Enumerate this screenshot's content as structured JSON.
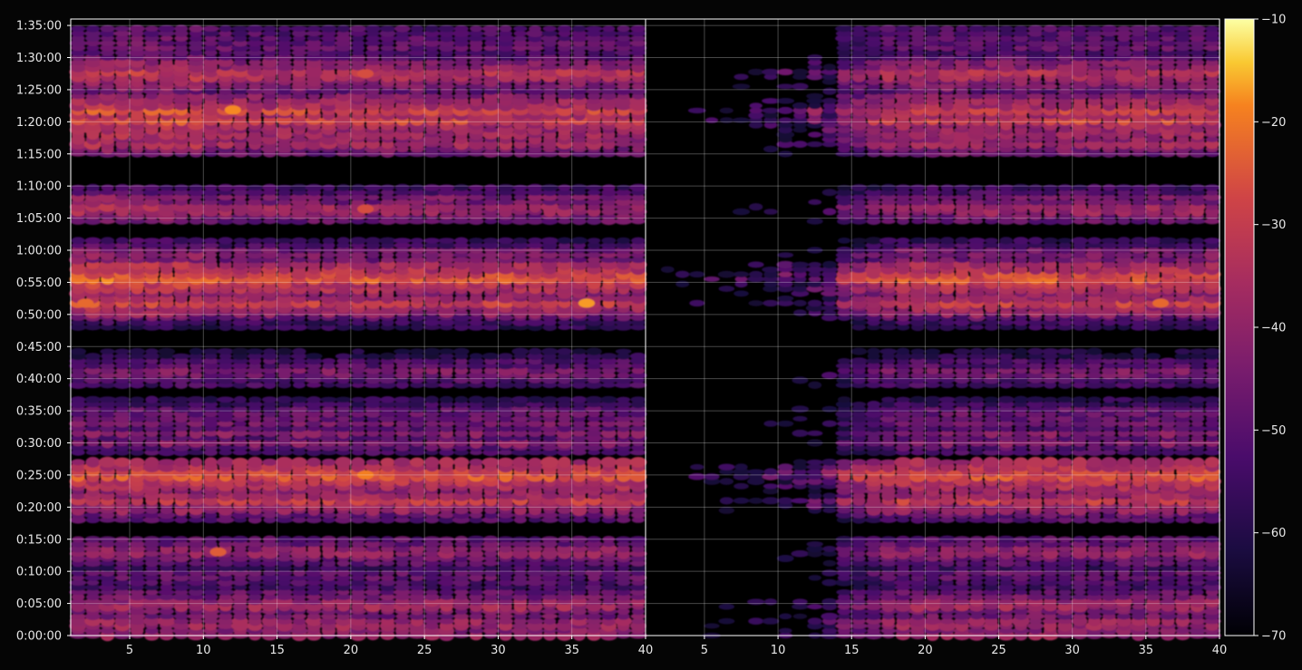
{
  "chart_data": {
    "type": "heatmap",
    "title": "",
    "xlabel": "",
    "ylabel": "",
    "panels": [
      {
        "name": "",
        "x_range": [
          1,
          40
        ],
        "x_ticks": [
          5,
          10,
          15,
          20,
          25,
          30,
          35,
          40
        ],
        "x_tick_labels": [
          "5",
          "10",
          "15",
          "20",
          "25",
          "30",
          "35",
          "40"
        ]
      },
      {
        "name": "",
        "x_range": [
          1,
          40
        ],
        "x_ticks": [
          5,
          10,
          15,
          20,
          25,
          30,
          35,
          40
        ],
        "x_tick_labels": [
          "5",
          "10",
          "15",
          "20",
          "25",
          "30",
          "35",
          "40"
        ]
      }
    ],
    "y_range_seconds": [
      0,
      5760
    ],
    "y_ticks_seconds": [
      0,
      300,
      600,
      900,
      1200,
      1500,
      1800,
      2100,
      2400,
      2700,
      3000,
      3300,
      3600,
      3900,
      4200,
      4500,
      4800,
      5100,
      5400,
      5700
    ],
    "y_tick_labels": [
      "0:00:00",
      "0:05:00",
      "0:10:00",
      "0:15:00",
      "0:20:00",
      "0:25:00",
      "0:30:00",
      "0:35:00",
      "0:40:00",
      "0:45:00",
      "0:50:00",
      "0:55:00",
      "1:00:00",
      "1:05:00",
      "1:10:00",
      "1:15:00",
      "1:20:00",
      "1:25:00",
      "1:30:00",
      "1:35:00"
    ],
    "colorbar": {
      "colormap": "inferno",
      "range": [
        -70,
        -10
      ],
      "ticks": [
        -70,
        -60,
        -50,
        -40,
        -30,
        -20,
        -10
      ],
      "tick_labels": [
        "−70",
        "−60",
        "−50",
        "−40",
        "−30",
        "−20",
        "−10"
      ]
    },
    "grid": true,
    "strong_bands": [
      {
        "t_seconds": 10,
        "level": -38
      },
      {
        "t_seconds": 110,
        "level": -36
      },
      {
        "t_seconds": 285,
        "level": -36
      },
      {
        "t_seconds": 395,
        "level": -48
      },
      {
        "t_seconds": 480,
        "level": -50
      },
      {
        "t_seconds": 565,
        "level": -46
      },
      {
        "t_seconds": 780,
        "level": -38
      },
      {
        "t_seconds": 1170,
        "level": -40
      },
      {
        "t_seconds": 1265,
        "level": -30
      },
      {
        "t_seconds": 1500,
        "level": -24
      },
      {
        "t_seconds": 1805,
        "level": -42
      },
      {
        "t_seconds": 1885,
        "level": -42
      },
      {
        "t_seconds": 1990,
        "level": -44
      },
      {
        "t_seconds": 2085,
        "level": -46
      },
      {
        "t_seconds": 2460,
        "level": -42
      },
      {
        "t_seconds": 2545,
        "level": -50
      },
      {
        "t_seconds": 3000,
        "level": -46
      },
      {
        "t_seconds": 3105,
        "level": -30
      },
      {
        "t_seconds": 3170,
        "level": -40
      },
      {
        "t_seconds": 3340,
        "level": -24
      },
      {
        "t_seconds": 3420,
        "level": -40
      },
      {
        "t_seconds": 3540,
        "level": -42
      },
      {
        "t_seconds": 3600,
        "level": -46
      },
      {
        "t_seconds": 3985,
        "level": -36
      },
      {
        "t_seconds": 4090,
        "level": -44
      },
      {
        "t_seconds": 4600,
        "level": -36
      },
      {
        "t_seconds": 4680,
        "level": -38
      },
      {
        "t_seconds": 4820,
        "level": -28
      },
      {
        "t_seconds": 4910,
        "level": -28
      },
      {
        "t_seconds": 5020,
        "level": -40
      },
      {
        "t_seconds": 5150,
        "level": -44
      },
      {
        "t_seconds": 5250,
        "level": -32
      },
      {
        "t_seconds": 5360,
        "level": -42
      },
      {
        "t_seconds": 5510,
        "level": -46
      },
      {
        "t_seconds": 5600,
        "level": -48
      },
      {
        "t_seconds": 5690,
        "level": -50
      }
    ],
    "peaks": [
      {
        "panel": 0,
        "x": 2,
        "t_seconds": 3105,
        "level": -22
      },
      {
        "panel": 0,
        "x": 12,
        "t_seconds": 4910,
        "level": -18
      },
      {
        "panel": 0,
        "x": 11,
        "t_seconds": 780,
        "level": -24
      },
      {
        "panel": 0,
        "x": 21,
        "t_seconds": 1500,
        "level": -19
      },
      {
        "panel": 0,
        "x": 21,
        "t_seconds": 5250,
        "level": -26
      },
      {
        "panel": 0,
        "x": 21,
        "t_seconds": 3985,
        "level": -26
      },
      {
        "panel": 0,
        "x": 36,
        "t_seconds": 3105,
        "level": -17
      },
      {
        "panel": 1,
        "x": 36,
        "t_seconds": 3105,
        "level": -22
      },
      {
        "panel": 1,
        "x": 22,
        "t_seconds": 1500,
        "level": -26
      }
    ]
  }
}
